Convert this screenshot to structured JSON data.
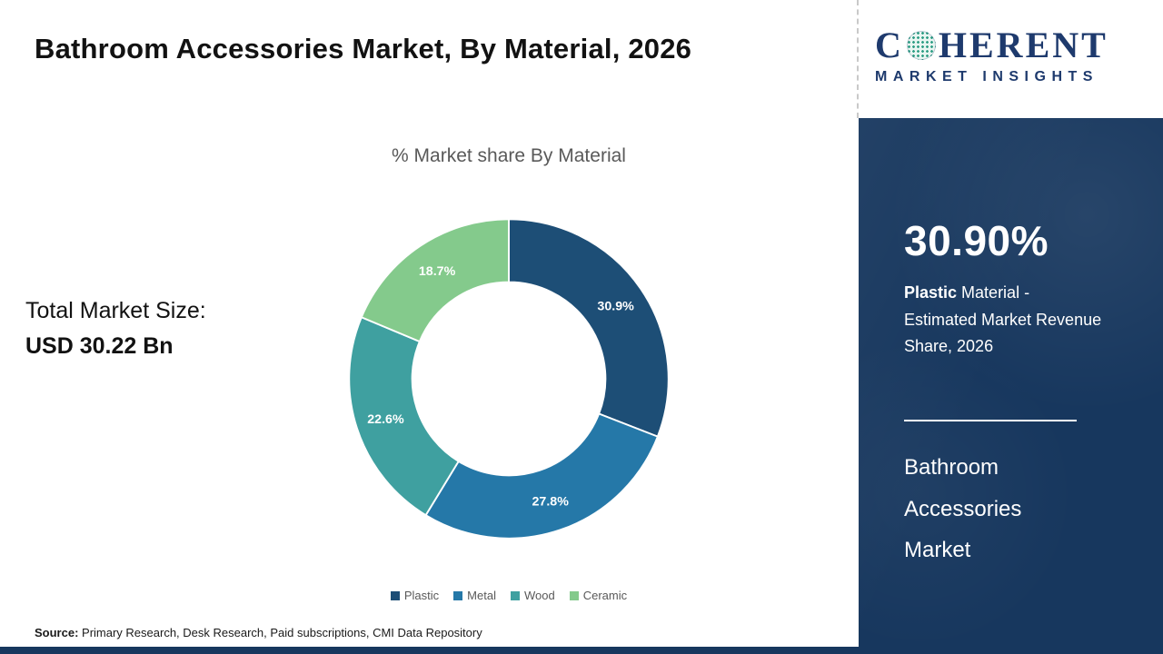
{
  "header": {
    "title": "Bathroom Accessories Market, By Material, 2026"
  },
  "logo": {
    "brand_prefix": "C",
    "brand_suffix": "HERENT",
    "subtitle": "MARKET INSIGHTS"
  },
  "left_stat": {
    "label": "Total Market Size:",
    "value": "USD 30.22 Bn"
  },
  "chart_data": {
    "type": "pie",
    "donut": true,
    "title": "% Market share By Material",
    "categories": [
      "Plastic",
      "Metal",
      "Wood",
      "Ceramic"
    ],
    "values": [
      30.9,
      27.8,
      22.6,
      18.7
    ],
    "labels": [
      "30.9%",
      "27.8%",
      "22.6%",
      "18.7%"
    ],
    "colors": [
      "#1d4e76",
      "#2578a8",
      "#3fa0a0",
      "#84ca8c"
    ],
    "start_angle_deg": 0,
    "direction": "clockwise",
    "legend_position": "bottom"
  },
  "sidebar": {
    "stat_value": "30.90%",
    "stat_label_bold": "Plastic",
    "stat_label_rest": " Material - Estimated Market Revenue Share, 2026",
    "panel_title": "Bathroom Accessories Market",
    "panel_color": "#17375e"
  },
  "footer": {
    "source_label": "Source:",
    "source_text": " Primary Research, Desk Research, Paid subscriptions, CMI Data Repository"
  }
}
